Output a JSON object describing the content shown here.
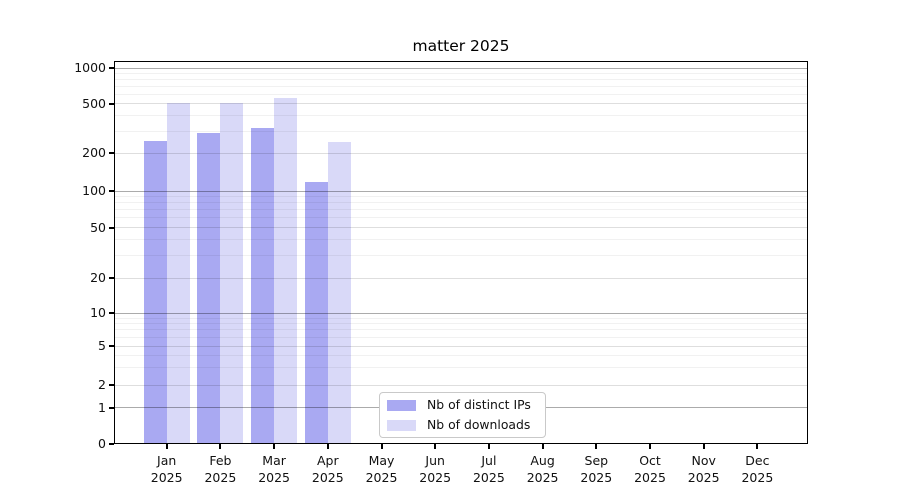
{
  "chart_data": {
    "type": "bar",
    "title": "matter 2025",
    "categories": [
      {
        "month": "Jan",
        "year": "2025"
      },
      {
        "month": "Feb",
        "year": "2025"
      },
      {
        "month": "Mar",
        "year": "2025"
      },
      {
        "month": "Apr",
        "year": "2025"
      },
      {
        "month": "May",
        "year": "2025"
      },
      {
        "month": "Jun",
        "year": "2025"
      },
      {
        "month": "Jul",
        "year": "2025"
      },
      {
        "month": "Aug",
        "year": "2025"
      },
      {
        "month": "Sep",
        "year": "2025"
      },
      {
        "month": "Oct",
        "year": "2025"
      },
      {
        "month": "Nov",
        "year": "2025"
      },
      {
        "month": "Dec",
        "year": "2025"
      }
    ],
    "series": [
      {
        "name": "Nb of distinct IPs",
        "color": "#a9a9f2",
        "values": [
          250,
          290,
          318,
          118,
          null,
          null,
          null,
          null,
          null,
          null,
          null,
          null
        ]
      },
      {
        "name": "Nb of downloads",
        "color": "#d9d9f8",
        "values": [
          505,
          505,
          560,
          246,
          null,
          null,
          null,
          null,
          null,
          null,
          null,
          null
        ]
      }
    ],
    "y_axis": {
      "scale": "symlog",
      "tick_labels": [
        "0",
        "1",
        "2",
        "5",
        "10",
        "20",
        "50",
        "100",
        "200",
        "500",
        "1000"
      ],
      "ticks": [
        0,
        1,
        2,
        5,
        10,
        20,
        50,
        100,
        200,
        500,
        1000
      ],
      "range": [
        0,
        1000
      ]
    },
    "grid": true,
    "legend_position": "lower center (inside plot)"
  },
  "legend": {
    "items": [
      {
        "label": "Nb of distinct IPs",
        "color": "#a9a9f2"
      },
      {
        "label": "Nb of downloads",
        "color": "#d9d9f8"
      }
    ]
  },
  "colors": {
    "bar_dark": "#a9a9f2",
    "bar_light": "#d9d9f8",
    "grid_major": "#b3b3b3",
    "grid_sub": "#e0e0e0",
    "grid_minor": "#f0f0f0",
    "spine": "#000000",
    "text": "#111111",
    "background": "#ffffff"
  }
}
